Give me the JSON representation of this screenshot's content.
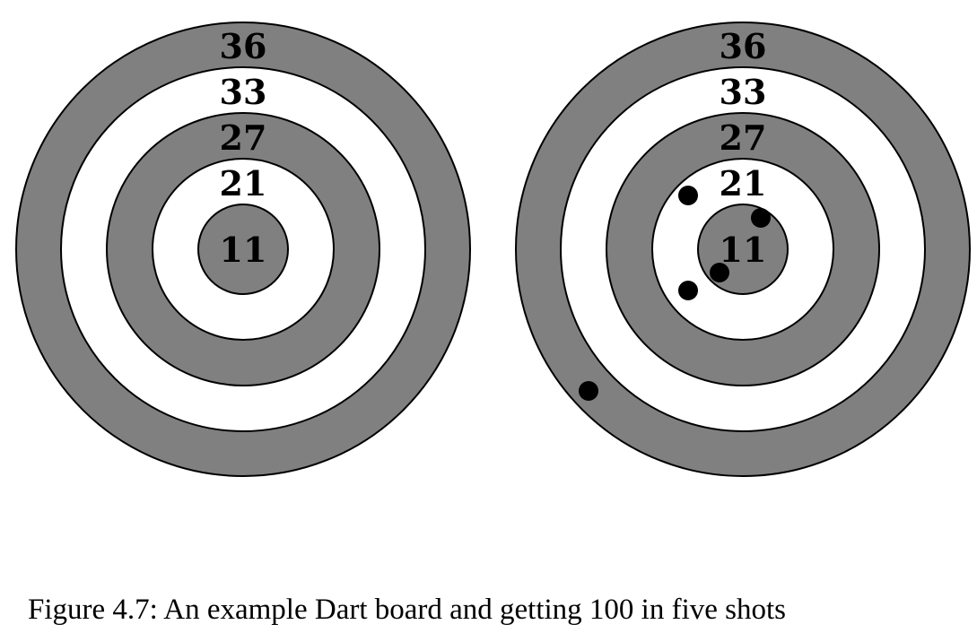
{
  "figure": {
    "caption": "Figure 4.7: An example Dart board and getting 100 in five shots",
    "colors": {
      "gray_ring": "#808080",
      "white_ring": "#ffffff",
      "outline": "#000000",
      "dart": "#000000"
    },
    "rings": [
      {
        "score": "36",
        "fill": "gray"
      },
      {
        "score": "33",
        "fill": "white"
      },
      {
        "score": "27",
        "fill": "gray"
      },
      {
        "score": "21",
        "fill": "white"
      },
      {
        "score": "11",
        "fill": "gray"
      }
    ],
    "boards": [
      {
        "name": "example-board",
        "darts": []
      },
      {
        "name": "scored-board",
        "darts": [
          11,
          21,
          21,
          11,
          36
        ]
      }
    ]
  }
}
